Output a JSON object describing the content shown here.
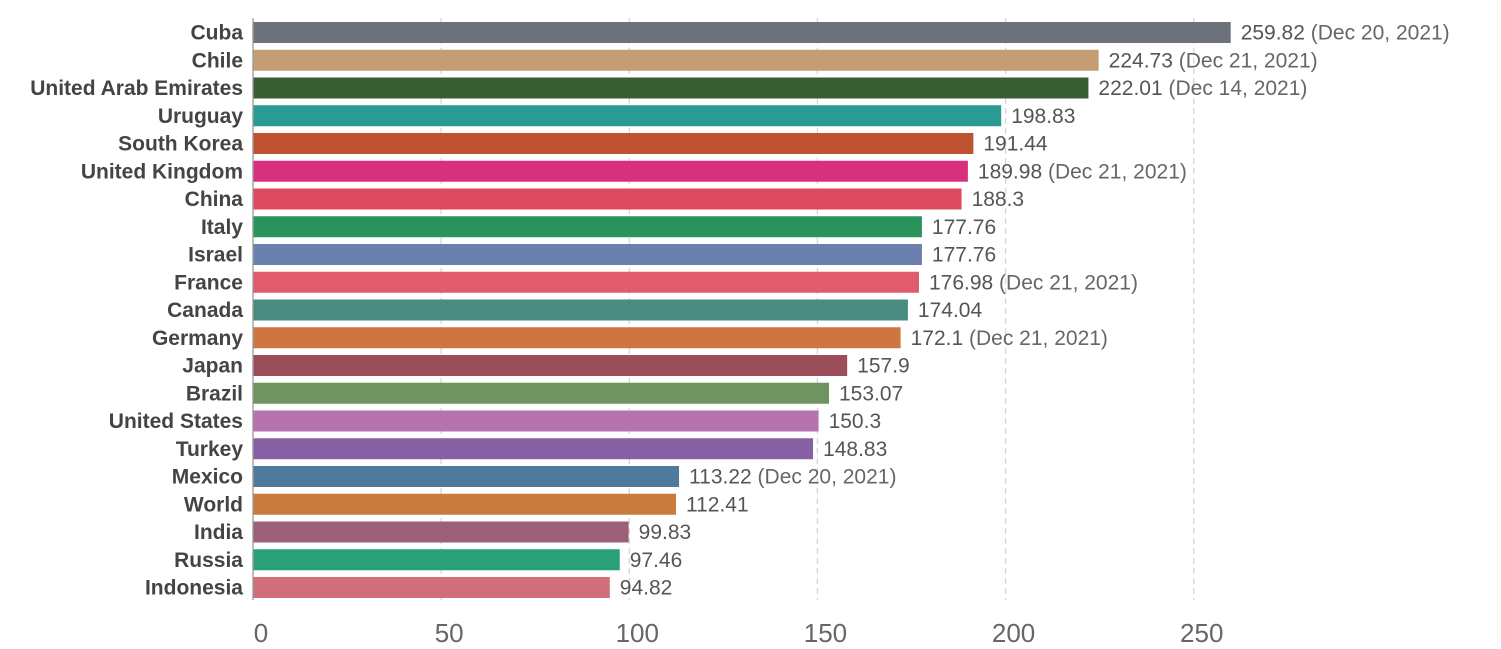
{
  "chart_data": {
    "type": "bar",
    "orientation": "horizontal",
    "categories": [
      "Cuba",
      "Chile",
      "United Arab Emirates",
      "Uruguay",
      "South Korea",
      "United Kingdom",
      "China",
      "Italy",
      "Israel",
      "France",
      "Canada",
      "Germany",
      "Japan",
      "Brazil",
      "United States",
      "Turkey",
      "Mexico",
      "World",
      "India",
      "Russia",
      "Indonesia"
    ],
    "values": [
      259.82,
      224.73,
      222.01,
      198.83,
      191.44,
      189.98,
      188.3,
      177.76,
      177.76,
      176.98,
      174.04,
      172.1,
      157.9,
      153.07,
      150.3,
      148.83,
      113.22,
      112.41,
      99.83,
      97.46,
      94.82
    ],
    "value_labels": [
      "259.82",
      "224.73",
      "222.01",
      "198.83",
      "191.44",
      "189.98",
      "188.3",
      "177.76",
      "177.76",
      "176.98",
      "174.04",
      "172.1",
      "157.9",
      "153.07",
      "150.3",
      "148.83",
      "113.22",
      "112.41",
      "99.83",
      "97.46",
      "94.82"
    ],
    "date_labels": [
      "(Dec 20, 2021)",
      "(Dec 21, 2021)",
      "(Dec 14, 2021)",
      "",
      "",
      "(Dec 21, 2021)",
      "",
      "",
      "",
      "(Dec 21, 2021)",
      "",
      "(Dec 21, 2021)",
      "",
      "",
      "",
      "",
      "(Dec 20, 2021)",
      "",
      "",
      "",
      ""
    ],
    "colors": [
      "#6d7179",
      "#c49e73",
      "#3a5e34",
      "#2a9a94",
      "#c0532f",
      "#d9307e",
      "#db4a5e",
      "#2a935c",
      "#6a80ae",
      "#e05b6d",
      "#4b8a7e",
      "#cf7540",
      "#9b4e5a",
      "#6f945f",
      "#b574b0",
      "#8660a3",
      "#4f7a9b",
      "#c97b3e",
      "#9b6078",
      "#2aa07a",
      "#d06f7b"
    ],
    "x_ticks": [
      0,
      50,
      100,
      150,
      200,
      250
    ],
    "x_tick_labels": [
      "0",
      "50",
      "100",
      "150",
      "200",
      "250"
    ],
    "xlim": [
      0,
      260
    ],
    "grid": true,
    "title": "",
    "xlabel": "",
    "ylabel": ""
  }
}
